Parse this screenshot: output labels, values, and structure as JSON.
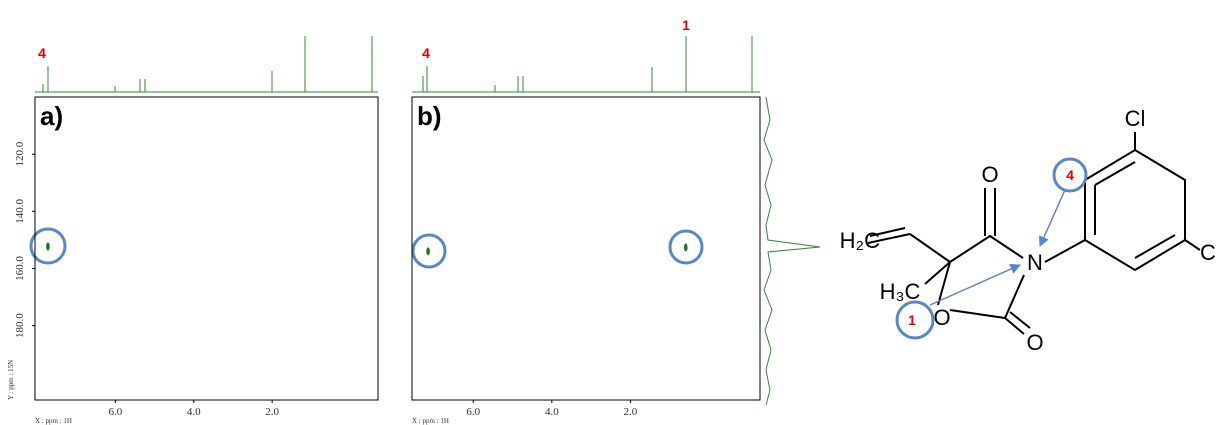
{
  "chart_data": [
    {
      "type": "scatter",
      "panel": "a)",
      "annotations": [
        "4"
      ],
      "x_label": "X : ppm : 1H",
      "y_label": "Y : ppm : 15N",
      "x": [
        7.72
      ],
      "values": [
        152.3
      ],
      "color": "#1a7a1a",
      "xlim": [
        8.05,
        -0.7
      ],
      "ylim": [
        100,
        206
      ],
      "xticks": [
        {
          "value": 6,
          "label": "6.0"
        },
        {
          "value": 4,
          "label": "4.0"
        },
        {
          "value": 2,
          "label": "2.0"
        }
      ],
      "yticks": [
        {
          "value": 120,
          "label": "120.0"
        },
        {
          "value": 140,
          "label": "140.0"
        },
        {
          "value": 160,
          "label": "160.0"
        },
        {
          "value": 180,
          "label": "180.0"
        }
      ]
    },
    {
      "type": "scatter",
      "panel": "b)",
      "annotations": [
        "4",
        "1"
      ],
      "x_label": "X : ppm : 1H",
      "x": [
        7.15,
        0.59
      ],
      "values": [
        154,
        152.6
      ],
      "color": "#1a7a1a",
      "xlim": [
        7.56,
        -1.3
      ],
      "ylim": [
        100,
        206
      ],
      "xticks": [
        {
          "value": 6,
          "label": "6.0"
        },
        {
          "value": 4,
          "label": "4.0"
        },
        {
          "value": 2,
          "label": "2.0"
        }
      ]
    }
  ],
  "molecule": {
    "vinyl": "H₂C",
    "methyl": "H₃C",
    "carbonyl_o": "O",
    "nitrogen": "N",
    "ring_o": "O",
    "urea_o": "O",
    "cl_top": "Cl",
    "cl_right": "Cl",
    "site_4": "4",
    "site_1": "1"
  }
}
